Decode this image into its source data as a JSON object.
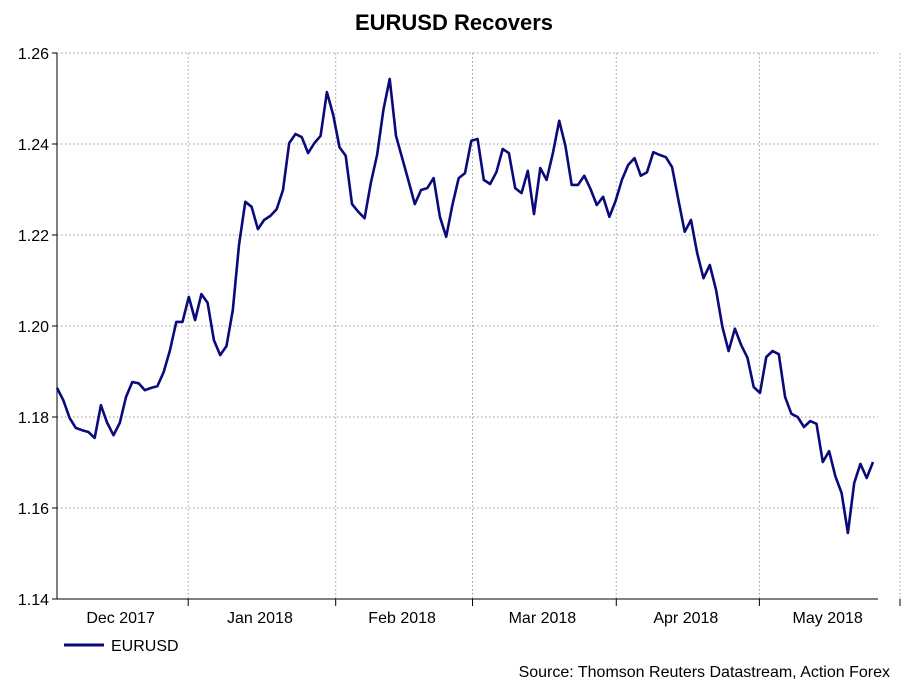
{
  "chart_data": {
    "type": "line",
    "title": "EURUSD Recovers",
    "xlabel": "",
    "ylabel": "",
    "ylim": [
      1.14,
      1.26
    ],
    "yticks": [
      "1.14",
      "1.16",
      "1.18",
      "1.20",
      "1.22",
      "1.24",
      "1.26"
    ],
    "grid": true,
    "legend_position": "bottom-left",
    "months": [
      {
        "label": "Dec 2017",
        "start_index": -2.0,
        "end_index": 20.9
      },
      {
        "label": "Jan 2018",
        "start_index": 20.9,
        "end_index": 44.4
      },
      {
        "label": "Feb 2018",
        "start_index": 44.4,
        "end_index": 66.2
      },
      {
        "label": "Mar 2018",
        "start_index": 66.2,
        "end_index": 89.1
      },
      {
        "label": "Apr 2018",
        "start_index": 89.1,
        "end_index": 111.9
      },
      {
        "label": "May 2018",
        "start_index": 111.9,
        "end_index": 134.3
      }
    ],
    "series": [
      {
        "name": "EURUSD",
        "color": "#0a0a7a",
        "values": [
          1.1864,
          1.1837,
          1.1798,
          1.1776,
          1.1771,
          1.1767,
          1.1754,
          1.1826,
          1.1787,
          1.176,
          1.1787,
          1.1844,
          1.1877,
          1.1874,
          1.1859,
          1.1864,
          1.1868,
          1.1899,
          1.1947,
          1.2009,
          1.2009,
          1.2064,
          1.2013,
          1.207,
          1.2051,
          1.1969,
          1.1936,
          1.1956,
          1.2035,
          1.2178,
          1.2273,
          1.2262,
          1.2213,
          1.2233,
          1.2242,
          1.2257,
          1.2299,
          1.2402,
          1.2422,
          1.2415,
          1.238,
          1.2402,
          1.2418,
          1.2514,
          1.2464,
          1.2393,
          1.2374,
          1.2268,
          1.2251,
          1.2237,
          1.2314,
          1.2376,
          1.2475,
          1.2543,
          1.2418,
          1.2369,
          1.2319,
          1.2268,
          1.2299,
          1.2303,
          1.2325,
          1.224,
          1.2196,
          1.2266,
          1.2325,
          1.2336,
          1.2407,
          1.2411,
          1.2321,
          1.2312,
          1.2338,
          1.2389,
          1.238,
          1.2303,
          1.2292,
          1.2341,
          1.2246,
          1.2347,
          1.2321,
          1.238,
          1.2451,
          1.2396,
          1.231,
          1.231,
          1.233,
          1.2301,
          1.2266,
          1.2284,
          1.224,
          1.2275,
          1.2321,
          1.2354,
          1.2369,
          1.233,
          1.2338,
          1.2382,
          1.2376,
          1.2371,
          1.2349,
          1.2277,
          1.2207,
          1.2233,
          1.216,
          1.2105,
          1.2134,
          1.2079,
          1.1998,
          1.1945,
          1.1994,
          1.1958,
          1.193,
          1.1866,
          1.1853,
          1.1932,
          1.1945,
          1.1938,
          1.1844,
          1.1807,
          1.18,
          1.1778,
          1.1791,
          1.1785,
          1.1701,
          1.1725,
          1.167,
          1.1633,
          1.1545,
          1.1655,
          1.1697,
          1.1666,
          1.1701
        ]
      }
    ],
    "source": "Source: Thomson Reuters Datastream, Action Forex"
  }
}
